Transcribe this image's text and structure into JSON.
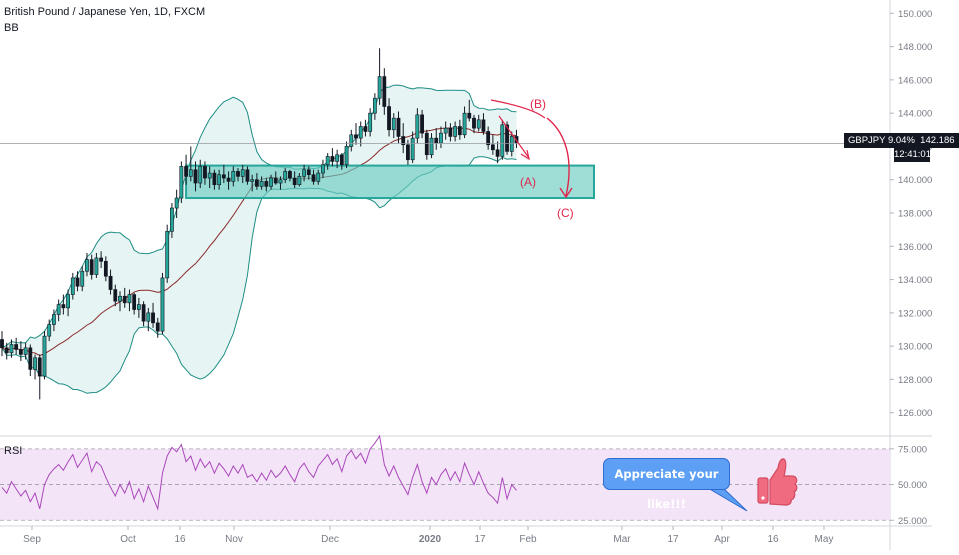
{
  "header": {
    "title": "British Pound / Japanese Yen, 1D, FXCM",
    "indicator": "BB",
    "rsi_label": "RSI"
  },
  "price_tag": {
    "symbol_change": "GBPJPY 9.04%",
    "price": "142.186",
    "countdown": "12:41:01"
  },
  "annotations": {
    "wave_a": "(A)",
    "wave_b": "(B)",
    "wave_c": "(C)",
    "like_text": "Appreciate your like!!!"
  },
  "colors": {
    "up": "#26a69a",
    "down": "#ef5350",
    "candle": "#131722",
    "bb_fill": "#e6f5f3",
    "bb_line": "#1e8d84",
    "bb_basis": "#8b2a2a",
    "zone_fill": "#6ccbc2",
    "zone_border": "#26a69a",
    "wave": "#e0254b",
    "rsi_line": "#ab47bc",
    "rsi_band": "#f3e5f7",
    "like_bubble": "#5c9ff5",
    "thumb": "#f06b7f"
  },
  "chart_data": [
    {
      "type": "candlestick",
      "title": "British Pound / Japanese Yen, 1D, FXCM",
      "indicator": "BB",
      "ylim": [
        124.6,
        150.8
      ],
      "y_ticks": [
        126,
        128,
        130,
        132,
        134,
        136,
        138,
        140,
        142,
        144,
        146,
        148,
        150
      ],
      "y_tick_labels": [
        "126.000",
        "128.000",
        "130.000",
        "132.000",
        "134.000",
        "136.000",
        "138.000",
        "140.000",
        "142.000",
        "144.000",
        "146.000",
        "148.000",
        "150.000"
      ],
      "x_tick_labels": [
        "Sep",
        "Oct",
        "16",
        "Nov",
        "Dec",
        "2020",
        "17",
        "Feb",
        "Mar",
        "17",
        "Apr",
        "16",
        "May"
      ],
      "last_price": 142.186,
      "support_zone": {
        "low": 138.9,
        "high": 140.85,
        "start_label": "Oct 23, 2019",
        "end_label": "Feb 15, 2020"
      },
      "candles_ohlc": [
        [
          130.4,
          130.9,
          129.4,
          129.9
        ],
        [
          129.9,
          130.2,
          129.2,
          129.6
        ],
        [
          129.6,
          130.4,
          129.3,
          130.1
        ],
        [
          130.1,
          130.5,
          129.5,
          129.8
        ],
        [
          129.8,
          130.3,
          129.1,
          129.5
        ],
        [
          129.5,
          130.2,
          129.2,
          129.9
        ],
        [
          129.9,
          130.1,
          128.2,
          128.6
        ],
        [
          128.6,
          129.5,
          128.0,
          129.3
        ],
        [
          129.3,
          129.5,
          126.8,
          128.2
        ],
        [
          128.2,
          130.9,
          128.0,
          130.6
        ],
        [
          130.6,
          131.6,
          130.3,
          131.3
        ],
        [
          131.3,
          132.2,
          130.9,
          131.9
        ],
        [
          131.9,
          132.8,
          131.5,
          132.5
        ],
        [
          132.5,
          133.1,
          131.9,
          132.3
        ],
        [
          132.3,
          133.4,
          131.8,
          133.1
        ],
        [
          133.1,
          134.4,
          132.8,
          134.1
        ],
        [
          134.1,
          134.5,
          133.3,
          133.6
        ],
        [
          133.6,
          134.8,
          133.3,
          134.5
        ],
        [
          134.5,
          135.6,
          134.2,
          135.2
        ],
        [
          135.2,
          135.5,
          134.0,
          134.3
        ],
        [
          134.3,
          135.6,
          134.1,
          135.3
        ],
        [
          135.3,
          135.7,
          134.7,
          135.1
        ],
        [
          135.1,
          135.4,
          133.9,
          134.2
        ],
        [
          134.2,
          134.6,
          133.1,
          133.4
        ],
        [
          133.4,
          133.7,
          132.4,
          132.7
        ],
        [
          132.7,
          133.3,
          132.1,
          133.0
        ],
        [
          133.0,
          133.5,
          132.3,
          132.6
        ],
        [
          132.6,
          133.4,
          132.1,
          133.1
        ],
        [
          133.1,
          133.2,
          131.9,
          132.2
        ],
        [
          132.2,
          132.9,
          131.7,
          132.5
        ],
        [
          132.5,
          132.7,
          131.2,
          131.5
        ],
        [
          131.5,
          132.3,
          130.9,
          132.0
        ],
        [
          132.0,
          132.6,
          131.1,
          131.4
        ],
        [
          131.4,
          131.7,
          130.5,
          130.9
        ],
        [
          130.9,
          134.4,
          130.7,
          134.1
        ],
        [
          134.1,
          137.3,
          133.8,
          136.9
        ],
        [
          136.9,
          138.6,
          136.5,
          138.3
        ],
        [
          138.3,
          139.4,
          137.7,
          138.9
        ],
        [
          138.9,
          141.1,
          138.6,
          140.8
        ],
        [
          140.8,
          141.5,
          139.7,
          140.2
        ],
        [
          140.2,
          142.0,
          139.9,
          140.6
        ],
        [
          140.6,
          141.1,
          139.3,
          139.8
        ],
        [
          139.8,
          141.2,
          139.5,
          140.8
        ],
        [
          140.8,
          141.1,
          139.7,
          140.1
        ],
        [
          140.1,
          140.8,
          139.5,
          140.4
        ],
        [
          140.4,
          140.6,
          139.4,
          139.7
        ],
        [
          139.7,
          140.6,
          139.4,
          140.3
        ],
        [
          140.3,
          140.9,
          139.8,
          140.1
        ],
        [
          140.1,
          140.5,
          139.4,
          139.9
        ],
        [
          139.9,
          140.8,
          139.6,
          140.5
        ],
        [
          140.5,
          140.7,
          139.9,
          140.2
        ],
        [
          140.2,
          140.9,
          139.8,
          140.6
        ],
        [
          140.6,
          140.8,
          139.7,
          139.9
        ],
        [
          139.9,
          140.3,
          139.3,
          140.0
        ],
        [
          140.0,
          140.4,
          139.4,
          139.6
        ],
        [
          139.6,
          140.2,
          139.4,
          139.9
        ],
        [
          139.9,
          140.1,
          139.3,
          139.6
        ],
        [
          139.6,
          140.3,
          139.4,
          140.1
        ],
        [
          140.1,
          140.5,
          139.7,
          139.8
        ],
        [
          139.8,
          140.2,
          139.4,
          140.0
        ],
        [
          140.0,
          140.7,
          139.8,
          140.5
        ],
        [
          140.5,
          140.6,
          139.9,
          140.1
        ],
        [
          140.1,
          140.5,
          139.5,
          139.7
        ],
        [
          139.7,
          140.4,
          139.6,
          140.2
        ],
        [
          140.2,
          140.9,
          139.9,
          140.6
        ],
        [
          140.6,
          140.8,
          140.0,
          140.3
        ],
        [
          140.3,
          140.6,
          139.7,
          139.9
        ],
        [
          139.9,
          140.6,
          139.7,
          140.4
        ],
        [
          140.4,
          141.2,
          140.1,
          140.9
        ],
        [
          140.9,
          141.6,
          140.6,
          141.4
        ],
        [
          141.4,
          141.9,
          140.8,
          141.1
        ],
        [
          141.1,
          141.8,
          140.7,
          141.5
        ],
        [
          141.5,
          141.6,
          140.6,
          140.9
        ],
        [
          140.9,
          142.3,
          140.7,
          142.0
        ],
        [
          142.0,
          143.0,
          141.7,
          142.7
        ],
        [
          142.7,
          143.4,
          142.1,
          142.5
        ],
        [
          142.5,
          143.5,
          142.0,
          143.2
        ],
        [
          143.2,
          143.6,
          142.6,
          142.9
        ],
        [
          142.9,
          144.3,
          142.6,
          144.0
        ],
        [
          144.0,
          145.2,
          143.6,
          144.9
        ],
        [
          144.9,
          147.9,
          144.5,
          146.2
        ],
        [
          146.2,
          146.7,
          143.9,
          144.4
        ],
        [
          144.4,
          144.9,
          142.6,
          143.0
        ],
        [
          143.0,
          144.0,
          142.5,
          143.7
        ],
        [
          143.7,
          144.1,
          142.2,
          142.6
        ],
        [
          142.6,
          143.4,
          141.6,
          142.1
        ],
        [
          142.1,
          142.4,
          140.9,
          141.2
        ],
        [
          141.2,
          142.9,
          141.0,
          142.5
        ],
        [
          142.5,
          144.3,
          142.2,
          143.9
        ],
        [
          143.9,
          144.2,
          142.5,
          142.8
        ],
        [
          142.8,
          143.0,
          141.2,
          141.5
        ],
        [
          141.5,
          142.8,
          141.3,
          142.5
        ],
        [
          142.5,
          143.1,
          141.8,
          142.2
        ],
        [
          142.2,
          143.2,
          141.9,
          142.8
        ],
        [
          142.8,
          143.5,
          142.4,
          143.1
        ],
        [
          143.1,
          143.4,
          142.3,
          142.6
        ],
        [
          142.6,
          143.5,
          142.3,
          143.2
        ],
        [
          143.2,
          143.6,
          142.4,
          142.7
        ],
        [
          142.7,
          144.4,
          142.5,
          144.0
        ],
        [
          144.0,
          144.8,
          143.5,
          143.7
        ],
        [
          143.7,
          143.9,
          142.8,
          143.1
        ],
        [
          143.1,
          143.9,
          142.9,
          143.6
        ],
        [
          143.6,
          144.0,
          142.7,
          142.9
        ],
        [
          142.9,
          143.2,
          141.8,
          142.1
        ],
        [
          142.1,
          142.7,
          141.5,
          141.8
        ],
        [
          141.8,
          142.3,
          141.0,
          141.4
        ],
        [
          141.4,
          143.6,
          141.2,
          143.3
        ],
        [
          143.3,
          143.5,
          141.5,
          141.7
        ],
        [
          141.7,
          142.9,
          141.4,
          142.6
        ],
        [
          142.6,
          143.0,
          141.9,
          142.2
        ]
      ]
    },
    {
      "type": "line",
      "title": "RSI",
      "ylim": [
        21.0,
        84.0
      ],
      "y_ticks": [
        25,
        50,
        75
      ],
      "y_tick_labels": [
        "25.000",
        "50.000",
        "75.000"
      ],
      "band": [
        25,
        75
      ],
      "values": [
        48,
        44,
        52,
        47,
        42,
        46,
        38,
        44,
        33,
        50,
        57,
        61,
        64,
        60,
        66,
        71,
        62,
        67,
        72,
        59,
        66,
        63,
        55,
        48,
        42,
        50,
        44,
        52,
        40,
        47,
        38,
        49,
        41,
        33,
        58,
        70,
        76,
        73,
        78,
        66,
        70,
        60,
        68,
        62,
        66,
        58,
        65,
        61,
        56,
        63,
        58,
        64,
        55,
        57,
        52,
        58,
        53,
        60,
        55,
        58,
        63,
        57,
        52,
        61,
        65,
        59,
        55,
        63,
        67,
        71,
        64,
        68,
        59,
        70,
        74,
        68,
        72,
        65,
        75,
        79,
        84,
        64,
        56,
        63,
        55,
        49,
        43,
        55,
        64,
        52,
        44,
        55,
        50,
        57,
        61,
        53,
        59,
        52,
        65,
        57,
        50,
        59,
        51,
        44,
        41,
        37,
        55,
        40,
        50,
        46
      ]
    }
  ]
}
